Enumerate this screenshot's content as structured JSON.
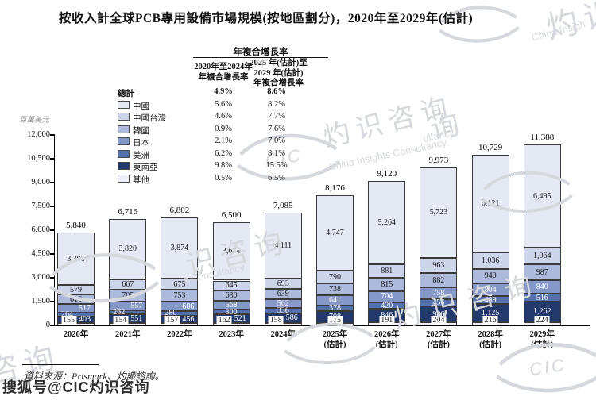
{
  "title": "按收入計全球PCB專用設備市場規模(按地區劃分)，2020年至2029年(估計)",
  "cagr_table": {
    "header": "年複合增長率",
    "col1_lines": [
      "2020年至2024年",
      "年複合增長率"
    ],
    "col2_lines": [
      "2025 年(估計)至",
      "2029 年(估計)",
      "年複合增長率"
    ],
    "rows": [
      {
        "label": "總計",
        "bold": true,
        "color": null,
        "cagr_2020_2024": "4.9%",
        "cagr_2025_2029": "8.6%"
      },
      {
        "label": "中國",
        "bold": false,
        "color": "#e4e9f4",
        "cagr_2020_2024": "5.6%",
        "cagr_2025_2029": "8.2%"
      },
      {
        "label": "中國台灣",
        "bold": false,
        "color": "#cdd5ea",
        "cagr_2020_2024": "4.6%",
        "cagr_2025_2029": "7.7%"
      },
      {
        "label": "韓國",
        "bold": false,
        "color": "#adbadc",
        "cagr_2020_2024": "0.9%",
        "cagr_2025_2029": "7.6%"
      },
      {
        "label": "日本",
        "bold": false,
        "color": "#8598c8",
        "cagr_2020_2024": "2.1%",
        "cagr_2025_2029": "7.0%"
      },
      {
        "label": "美洲",
        "bold": false,
        "color": "#5571ac",
        "cagr_2020_2024": "6.2%",
        "cagr_2025_2029": "8.1%"
      },
      {
        "label": "東南亞",
        "bold": false,
        "color": "#24396b",
        "cagr_2020_2024": "9.8%",
        "cagr_2025_2029": "15.5%"
      },
      {
        "label": "其他",
        "bold": false,
        "color": "#edf0f8",
        "cagr_2020_2024": "0.5%",
        "cagr_2025_2029": "6.5%"
      }
    ]
  },
  "chart_data": {
    "type": "bar",
    "stacked": true,
    "title": "按收入計全球PCB專用設備市場規模(按地區劃分)，2020年至2029年(估計)",
    "ylabel": "百萬美元",
    "unit": "百萬美元",
    "ylim": [
      0,
      12000
    ],
    "ytick_step": 1500,
    "ytick_labels": [
      "0",
      "1,500",
      "3,000",
      "4,500",
      "6,000",
      "7,500",
      "9,000",
      "10,500",
      "12,000"
    ],
    "grid": false,
    "legend_position": "upper-left-table",
    "categories": [
      {
        "line1": "2020年",
        "line2": ""
      },
      {
        "line1": "2021年",
        "line2": ""
      },
      {
        "line1": "2022年",
        "line2": ""
      },
      {
        "line1": "2023年",
        "line2": ""
      },
      {
        "line1": "2024年",
        "line2": ""
      },
      {
        "line1": "2025年",
        "line2": "(估計)"
      },
      {
        "line1": "2026年",
        "line2": "(估計)"
      },
      {
        "line1": "2027年",
        "line2": "(估計)"
      },
      {
        "line1": "2028年",
        "line2": "(估計)"
      },
      {
        "line1": "2029年",
        "line2": "(估計)"
      }
    ],
    "totals": [
      5840,
      6716,
      6802,
      6500,
      7085,
      8176,
      9120,
      9973,
      10729,
      11388
    ],
    "series": [
      {
        "name": "其他",
        "color": "#edf0f8",
        "label_color": "#1a1a1a",
        "values": [
          155,
          154,
          157,
          162,
          158,
          175,
          191,
          204,
          216,
          224
        ]
      },
      {
        "name": "東南亞",
        "color": "#24396b",
        "label_color": "#ffffff",
        "values": [
          403,
          551,
          456,
          521,
          586,
          708,
          846,
          986,
          1125,
          1262
        ]
      },
      {
        "name": "美洲",
        "color": "#5571ac",
        "label_color": "#ffffff",
        "values": [
          264,
          262,
          280,
          300,
          336,
          378,
          420,
          456,
          489,
          516
        ]
      },
      {
        "name": "日本",
        "color": "#8598c8",
        "label_color": "#ffffff",
        "values": [
          517,
          557,
          606,
          568,
          562,
          641,
          704,
          758,
          804,
          840
        ]
      },
      {
        "name": "韓國",
        "color": "#adbadc",
        "label_color": "#1a1a1a",
        "values": [
          616,
          705,
          753,
          630,
          639,
          738,
          815,
          882,
          940,
          987
        ]
      },
      {
        "name": "中國台灣",
        "color": "#cdd5ea",
        "label_color": "#1a1a1a",
        "values": [
          579,
          667,
          675,
          645,
          693,
          790,
          881,
          963,
          1036,
          1064
        ]
      },
      {
        "name": "中國",
        "color": "#e4e9f4",
        "label_color": "#1a1a1a",
        "values": [
          3306,
          3820,
          3874,
          3674,
          4111,
          4747,
          5264,
          5723,
          6121,
          6495
        ]
      }
    ]
  },
  "source": "資料來源：Prismark、灼識諮詢。",
  "watermark": {
    "cn": "灼识咨询",
    "cn_partial_top": "灼识",
    "cn_partial_mid": "识咨询",
    "cn_partial_one": "询",
    "cn_partial_corner": "咨询",
    "en": "China Insights Consultancy",
    "en_partial_top": "China Insigh",
    "en_partial_mid": "s Consultancy",
    "en_partial_small": "ultancy",
    "cic": "CIC",
    "sohu": "搜狐号@CIC灼识咨询"
  }
}
